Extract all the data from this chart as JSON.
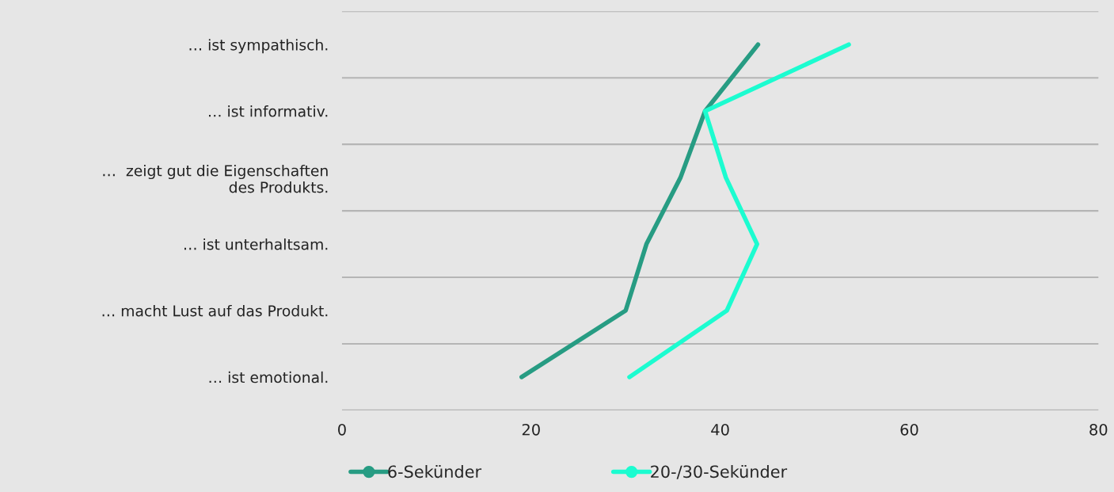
{
  "chart_data": {
    "type": "line",
    "orientation": "horizontal",
    "categories": [
      "… ist sympathisch.",
      "… ist informativ.",
      "…  zeigt gut die Eigenschaften\ndes Produkts.",
      "… ist unterhaltsam.",
      "… macht Lust auf das Produkt.",
      "… ist emotional."
    ],
    "series": [
      {
        "name": "6-Sekünder",
        "color": "#279c83",
        "values": [
          44,
          38.4,
          35.8,
          32.2,
          30,
          19
        ]
      },
      {
        "name": "20-/30-Sekünder",
        "color": "#1cfcd0",
        "values": [
          53.6,
          38.4,
          40.6,
          43.9,
          40.7,
          30.4
        ]
      }
    ],
    "xlim": [
      0,
      80
    ],
    "xticks": [
      0,
      20,
      40,
      60,
      80
    ],
    "grid": "y",
    "legend": "bottom"
  }
}
